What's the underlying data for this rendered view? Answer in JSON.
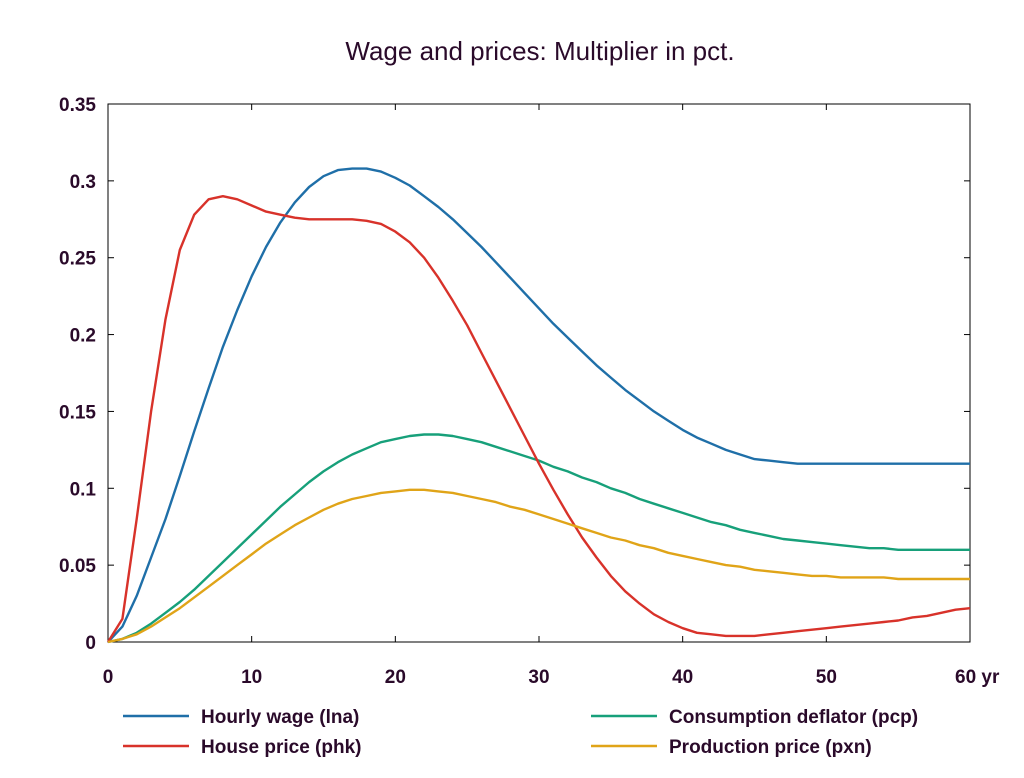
{
  "chart_data": {
    "type": "line",
    "title": "Wage and prices: Multiplier in pct.",
    "xlabel": "",
    "ylabel": "",
    "xlim": [
      0,
      60
    ],
    "ylim": [
      0,
      0.35
    ],
    "x_ticks": [
      "0",
      "10",
      "20",
      "30",
      "40",
      "50",
      "60 yr"
    ],
    "y_ticks": [
      "0",
      "0.05",
      "0.1",
      "0.15",
      "0.2",
      "0.25",
      "0.3",
      "0.35"
    ],
    "grid": false,
    "legend": "bottom",
    "x": [
      0,
      1,
      2,
      3,
      4,
      5,
      6,
      7,
      8,
      9,
      10,
      11,
      12,
      13,
      14,
      15,
      16,
      17,
      18,
      19,
      20,
      21,
      22,
      23,
      24,
      25,
      26,
      27,
      28,
      29,
      30,
      31,
      32,
      33,
      34,
      35,
      36,
      37,
      38,
      39,
      40,
      41,
      42,
      43,
      44,
      45,
      46,
      47,
      48,
      49,
      50,
      51,
      52,
      53,
      54,
      55,
      56,
      57,
      58,
      59,
      60
    ],
    "series": [
      {
        "name": "Hourly wage (lna)",
        "color": "#1f6fa8",
        "values": [
          0,
          0.01,
          0.03,
          0.055,
          0.08,
          0.108,
          0.137,
          0.165,
          0.192,
          0.216,
          0.238,
          0.257,
          0.273,
          0.286,
          0.296,
          0.303,
          0.307,
          0.308,
          0.308,
          0.306,
          0.302,
          0.297,
          0.29,
          0.283,
          0.275,
          0.266,
          0.257,
          0.247,
          0.237,
          0.227,
          0.217,
          0.207,
          0.198,
          0.189,
          0.18,
          0.172,
          0.164,
          0.157,
          0.15,
          0.144,
          0.138,
          0.133,
          0.129,
          0.125,
          0.122,
          0.119,
          0.118,
          0.117,
          0.116,
          0.116,
          0.116,
          0.116,
          0.116,
          0.116,
          0.116,
          0.116,
          0.116,
          0.116,
          0.116,
          0.116,
          0.116
        ]
      },
      {
        "name": "Consumption deflator (pcp)",
        "color": "#17a07a",
        "values": [
          0,
          0.002,
          0.006,
          0.012,
          0.019,
          0.026,
          0.034,
          0.043,
          0.052,
          0.061,
          0.07,
          0.079,
          0.088,
          0.096,
          0.104,
          0.111,
          0.117,
          0.122,
          0.126,
          0.13,
          0.132,
          0.134,
          0.135,
          0.135,
          0.134,
          0.132,
          0.13,
          0.127,
          0.124,
          0.121,
          0.118,
          0.114,
          0.111,
          0.107,
          0.104,
          0.1,
          0.097,
          0.093,
          0.09,
          0.087,
          0.084,
          0.081,
          0.078,
          0.076,
          0.073,
          0.071,
          0.069,
          0.067,
          0.066,
          0.065,
          0.064,
          0.063,
          0.062,
          0.061,
          0.061,
          0.06,
          0.06,
          0.06,
          0.06,
          0.06,
          0.06
        ]
      },
      {
        "name": "House price (phk)",
        "color": "#d8322a",
        "values": [
          0,
          0.015,
          0.08,
          0.15,
          0.21,
          0.255,
          0.278,
          0.288,
          0.29,
          0.288,
          0.284,
          0.28,
          0.278,
          0.276,
          0.275,
          0.275,
          0.275,
          0.275,
          0.274,
          0.272,
          0.267,
          0.26,
          0.25,
          0.237,
          0.222,
          0.206,
          0.188,
          0.17,
          0.152,
          0.134,
          0.116,
          0.099,
          0.083,
          0.068,
          0.055,
          0.043,
          0.033,
          0.025,
          0.018,
          0.013,
          0.009,
          0.006,
          0.005,
          0.004,
          0.004,
          0.004,
          0.005,
          0.006,
          0.007,
          0.008,
          0.009,
          0.01,
          0.011,
          0.012,
          0.013,
          0.014,
          0.016,
          0.017,
          0.019,
          0.021,
          0.022
        ]
      },
      {
        "name": "Production price (pxn)",
        "color": "#e0a418",
        "values": [
          0,
          0.002,
          0.005,
          0.01,
          0.016,
          0.022,
          0.029,
          0.036,
          0.043,
          0.05,
          0.057,
          0.064,
          0.07,
          0.076,
          0.081,
          0.086,
          0.09,
          0.093,
          0.095,
          0.097,
          0.098,
          0.099,
          0.099,
          0.098,
          0.097,
          0.095,
          0.093,
          0.091,
          0.088,
          0.086,
          0.083,
          0.08,
          0.077,
          0.074,
          0.071,
          0.068,
          0.066,
          0.063,
          0.061,
          0.058,
          0.056,
          0.054,
          0.052,
          0.05,
          0.049,
          0.047,
          0.046,
          0.045,
          0.044,
          0.043,
          0.043,
          0.042,
          0.042,
          0.042,
          0.042,
          0.041,
          0.041,
          0.041,
          0.041,
          0.041,
          0.041
        ]
      }
    ]
  }
}
